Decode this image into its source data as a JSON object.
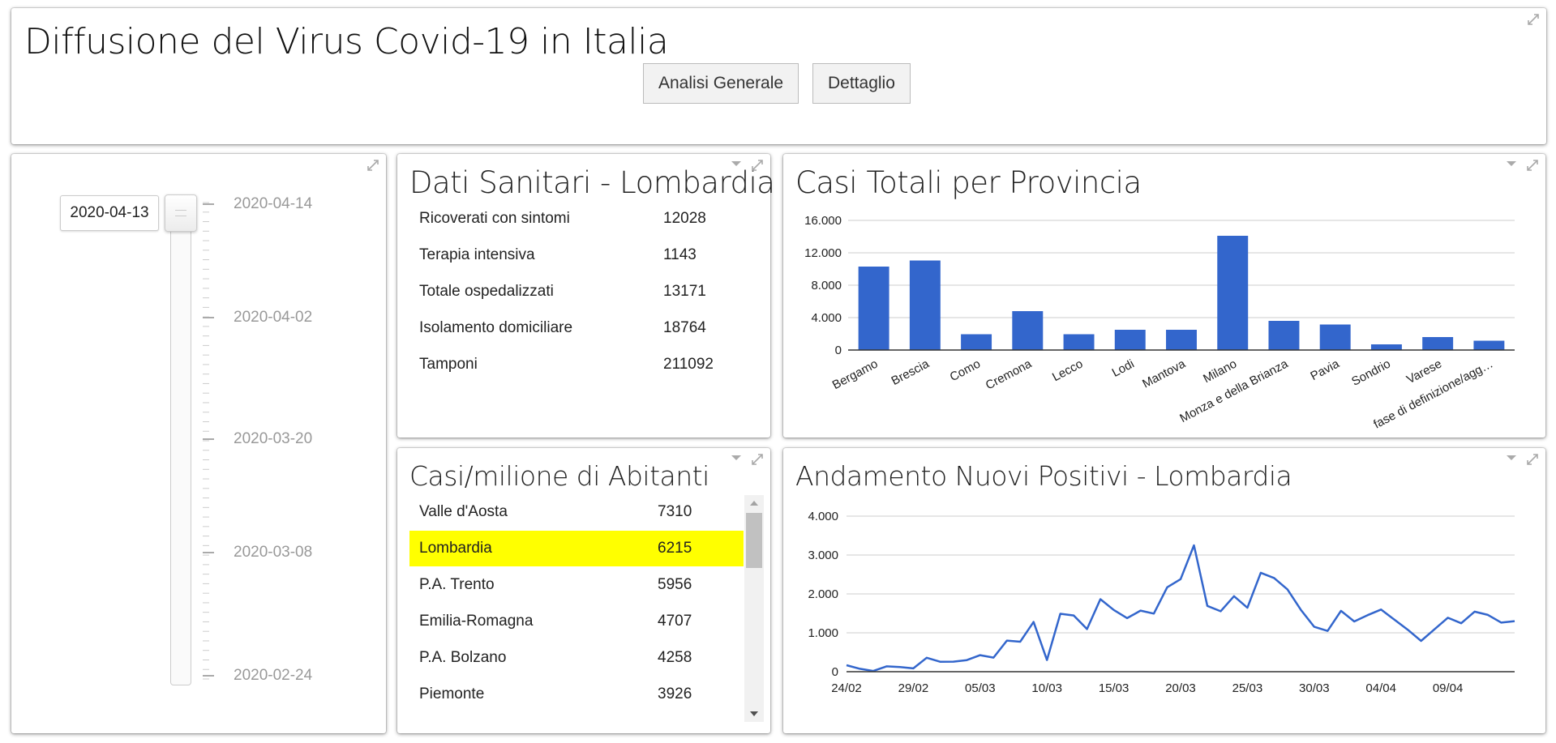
{
  "header": {
    "title": "Diffusione del Virus Covid-19 in Italia",
    "buttons": [
      "Analisi Generale",
      "Dettaglio"
    ]
  },
  "slider": {
    "value": "2020-04-13",
    "labels": [
      "2020-04-14",
      "2020-04-02",
      "2020-03-20",
      "2020-03-08",
      "2020-02-24"
    ]
  },
  "sanitari": {
    "title": "Dati Sanitari - Lombardia",
    "rows": [
      {
        "label": "Ricoverati con sintomi",
        "value": "12028"
      },
      {
        "label": "Terapia intensiva",
        "value": "1143"
      },
      {
        "label": "Totale ospedalizzati",
        "value": "13171"
      },
      {
        "label": "Isolamento domiciliare",
        "value": "18764"
      },
      {
        "label": "Tamponi",
        "value": "211092"
      }
    ]
  },
  "casi_milione": {
    "title": "Casi/milione di Abitanti",
    "highlight_color": "#ffff00",
    "rows": [
      {
        "label": "Valle d'Aosta",
        "value": "7310"
      },
      {
        "label": "Lombardia",
        "value": "6215",
        "highlight": true
      },
      {
        "label": "P.A. Trento",
        "value": "5956"
      },
      {
        "label": "Emilia-Romagna",
        "value": "4707"
      },
      {
        "label": "P.A. Bolzano",
        "value": "4258"
      },
      {
        "label": "Piemonte",
        "value": "3926"
      }
    ]
  },
  "colors": {
    "series": "#3366cc",
    "grid": "#cccccc",
    "axis": "#333333"
  },
  "chart_data": [
    {
      "type": "bar",
      "title": "Casi Totali per Provincia",
      "categories": [
        "Bergamo",
        "Brescia",
        "Como",
        "Cremona",
        "Lecco",
        "Lodi",
        "Mantova",
        "Milano",
        "Monza e della Brianza",
        "Pavia",
        "Sondrio",
        "Varese",
        "In fase di definizione/aggiornamento"
      ],
      "category_labels": [
        "Bergamo",
        "Brescia",
        "Como",
        "Cremona",
        "Lecco",
        "Lodi",
        "Mantova",
        "Milano",
        "Monza e della Brianza",
        "Pavia",
        "Sondrio",
        "Varese",
        "fase di definizione/agg…"
      ],
      "values": [
        10300,
        11050,
        1950,
        4800,
        1950,
        2500,
        2500,
        14100,
        3600,
        3150,
        700,
        1600,
        1150
      ],
      "ylim": [
        0,
        16000
      ],
      "yticks": [
        0,
        4000,
        8000,
        12000,
        16000
      ],
      "ytick_labels": [
        "0",
        "4.000",
        "8.000",
        "12.000",
        "16.000"
      ],
      "grid": true
    },
    {
      "type": "line",
      "title": "Andamento Nuovi Positivi - Lombardia",
      "x_start": "2020-02-24",
      "x_end": "2020-04-14",
      "x": [
        "2020-02-24",
        "2020-02-25",
        "2020-02-26",
        "2020-02-27",
        "2020-02-28",
        "2020-02-29",
        "2020-03-01",
        "2020-03-02",
        "2020-03-03",
        "2020-03-04",
        "2020-03-05",
        "2020-03-06",
        "2020-03-07",
        "2020-03-08",
        "2020-03-09",
        "2020-03-10",
        "2020-03-11",
        "2020-03-12",
        "2020-03-13",
        "2020-03-14",
        "2020-03-15",
        "2020-03-16",
        "2020-03-17",
        "2020-03-18",
        "2020-03-19",
        "2020-03-20",
        "2020-03-21",
        "2020-03-22",
        "2020-03-23",
        "2020-03-24",
        "2020-03-25",
        "2020-03-26",
        "2020-03-27",
        "2020-03-28",
        "2020-03-29",
        "2020-03-30",
        "2020-03-31",
        "2020-04-01",
        "2020-04-02",
        "2020-04-03",
        "2020-04-04",
        "2020-04-05",
        "2020-04-06",
        "2020-04-07",
        "2020-04-08",
        "2020-04-09",
        "2020-04-10",
        "2020-04-11",
        "2020-04-12",
        "2020-04-13",
        "2020-04-14"
      ],
      "values": [
        166,
        74,
        18,
        137,
        121,
        85,
        358,
        257,
        258,
        298,
        424,
        363,
        800,
        770,
        1280,
        300,
        1490,
        1445,
        1095,
        1865,
        1587,
        1377,
        1571,
        1493,
        2171,
        2380,
        3251,
        1691,
        1555,
        1942,
        1643,
        2543,
        2409,
        2117,
        1592,
        1154,
        1047,
        1565,
        1292,
        1455,
        1598,
        1337,
        1079,
        791,
        1089,
        1388,
        1246,
        1544,
        1460,
        1262,
        1300
      ],
      "ylim": [
        0,
        4000
      ],
      "yticks": [
        0,
        1000,
        2000,
        3000,
        4000
      ],
      "ytick_labels": [
        "0",
        "1.000",
        "2.000",
        "3.000",
        "4.000"
      ],
      "xtick_labels": [
        "24/02",
        "29/02",
        "05/03",
        "10/03",
        "15/03",
        "20/03",
        "25/03",
        "30/03",
        "04/04",
        "09/04"
      ],
      "grid": true
    }
  ]
}
